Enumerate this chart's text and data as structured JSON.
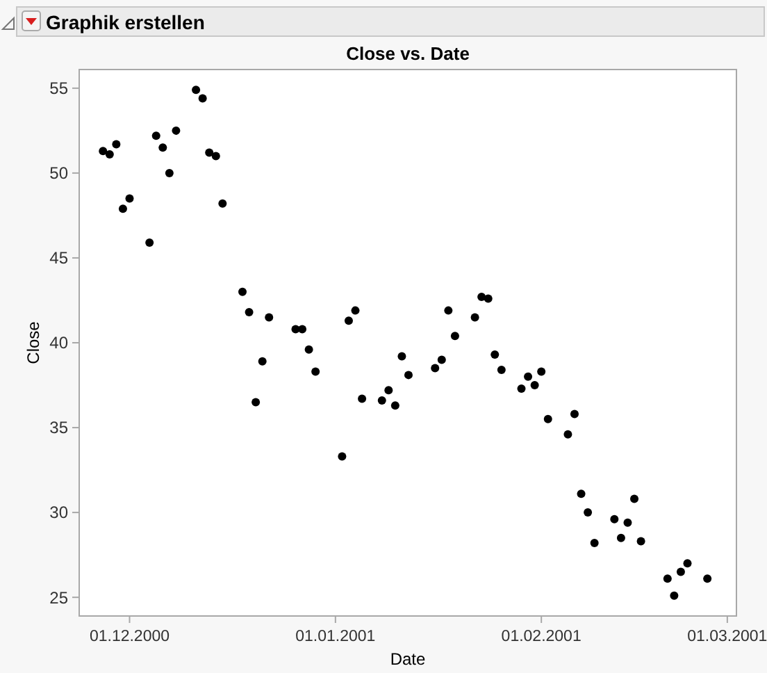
{
  "chart_data": {
    "type": "scatter",
    "title": "Close vs. Date",
    "xlabel": "Date",
    "ylabel": "Close",
    "annotations": [
      "Graphik erstellen"
    ],
    "x": [
      "2000-11-27",
      "2000-11-28",
      "2000-11-29",
      "2000-11-30",
      "2000-12-01",
      "2000-12-04",
      "2000-12-05",
      "2000-12-06",
      "2000-12-07",
      "2000-12-08",
      "2000-12-11",
      "2000-12-12",
      "2000-12-13",
      "2000-12-14",
      "2000-12-15",
      "2000-12-18",
      "2000-12-19",
      "2000-12-20",
      "2000-12-21",
      "2000-12-22",
      "2000-12-26",
      "2000-12-27",
      "2000-12-28",
      "2000-12-29",
      "2001-01-02",
      "2001-01-03",
      "2001-01-04",
      "2001-01-05",
      "2001-01-08",
      "2001-01-09",
      "2001-01-10",
      "2001-01-11",
      "2001-01-12",
      "2001-01-16",
      "2001-01-17",
      "2001-01-18",
      "2001-01-19",
      "2001-01-22",
      "2001-01-23",
      "2001-01-24",
      "2001-01-25",
      "2001-01-26",
      "2001-01-29",
      "2001-01-30",
      "2001-01-31",
      "2001-02-01",
      "2001-02-02",
      "2001-02-05",
      "2001-02-06",
      "2001-02-07",
      "2001-02-08",
      "2001-02-09",
      "2001-02-12",
      "2001-02-13",
      "2001-02-14",
      "2001-02-15",
      "2001-02-16",
      "2001-02-20",
      "2001-02-21",
      "2001-02-22",
      "2001-02-23",
      "2001-02-26"
    ],
    "series": [
      {
        "color": "#000000",
        "values": [
          51.3,
          51.1,
          51.7,
          47.9,
          48.5,
          45.9,
          52.2,
          51.5,
          50.0,
          52.5,
          54.9,
          54.4,
          51.2,
          51.0,
          48.2,
          43.0,
          41.8,
          36.5,
          38.9,
          41.5,
          40.8,
          40.8,
          39.6,
          38.3,
          33.3,
          41.3,
          41.9,
          36.7,
          36.6,
          37.2,
          36.3,
          39.2,
          38.1,
          38.5,
          39.0,
          41.9,
          40.4,
          41.5,
          42.7,
          42.6,
          39.3,
          38.4,
          37.3,
          38.0,
          37.5,
          38.3,
          35.5,
          34.6,
          35.8,
          31.1,
          30.0,
          28.2,
          29.6,
          28.5,
          29.4,
          30.8,
          28.3,
          26.1,
          25.1,
          26.5,
          27.0,
          26.1
        ]
      }
    ],
    "marker": "circle",
    "xlim": [
      "2000-11-23T10:00",
      "2001-03-02T09:00"
    ],
    "xticks": [
      {
        "value": "2000-12-01",
        "label": "01.12.2000"
      },
      {
        "value": "2001-01-01",
        "label": "01.01.2001"
      },
      {
        "value": "2001-02-01",
        "label": "01.02.2001"
      },
      {
        "value": "2001-03-01",
        "label": "01.03.2001"
      }
    ],
    "ylim": [
      23.9,
      56.1
    ],
    "yticks": [
      25,
      30,
      35,
      40,
      45,
      50,
      55
    ]
  }
}
